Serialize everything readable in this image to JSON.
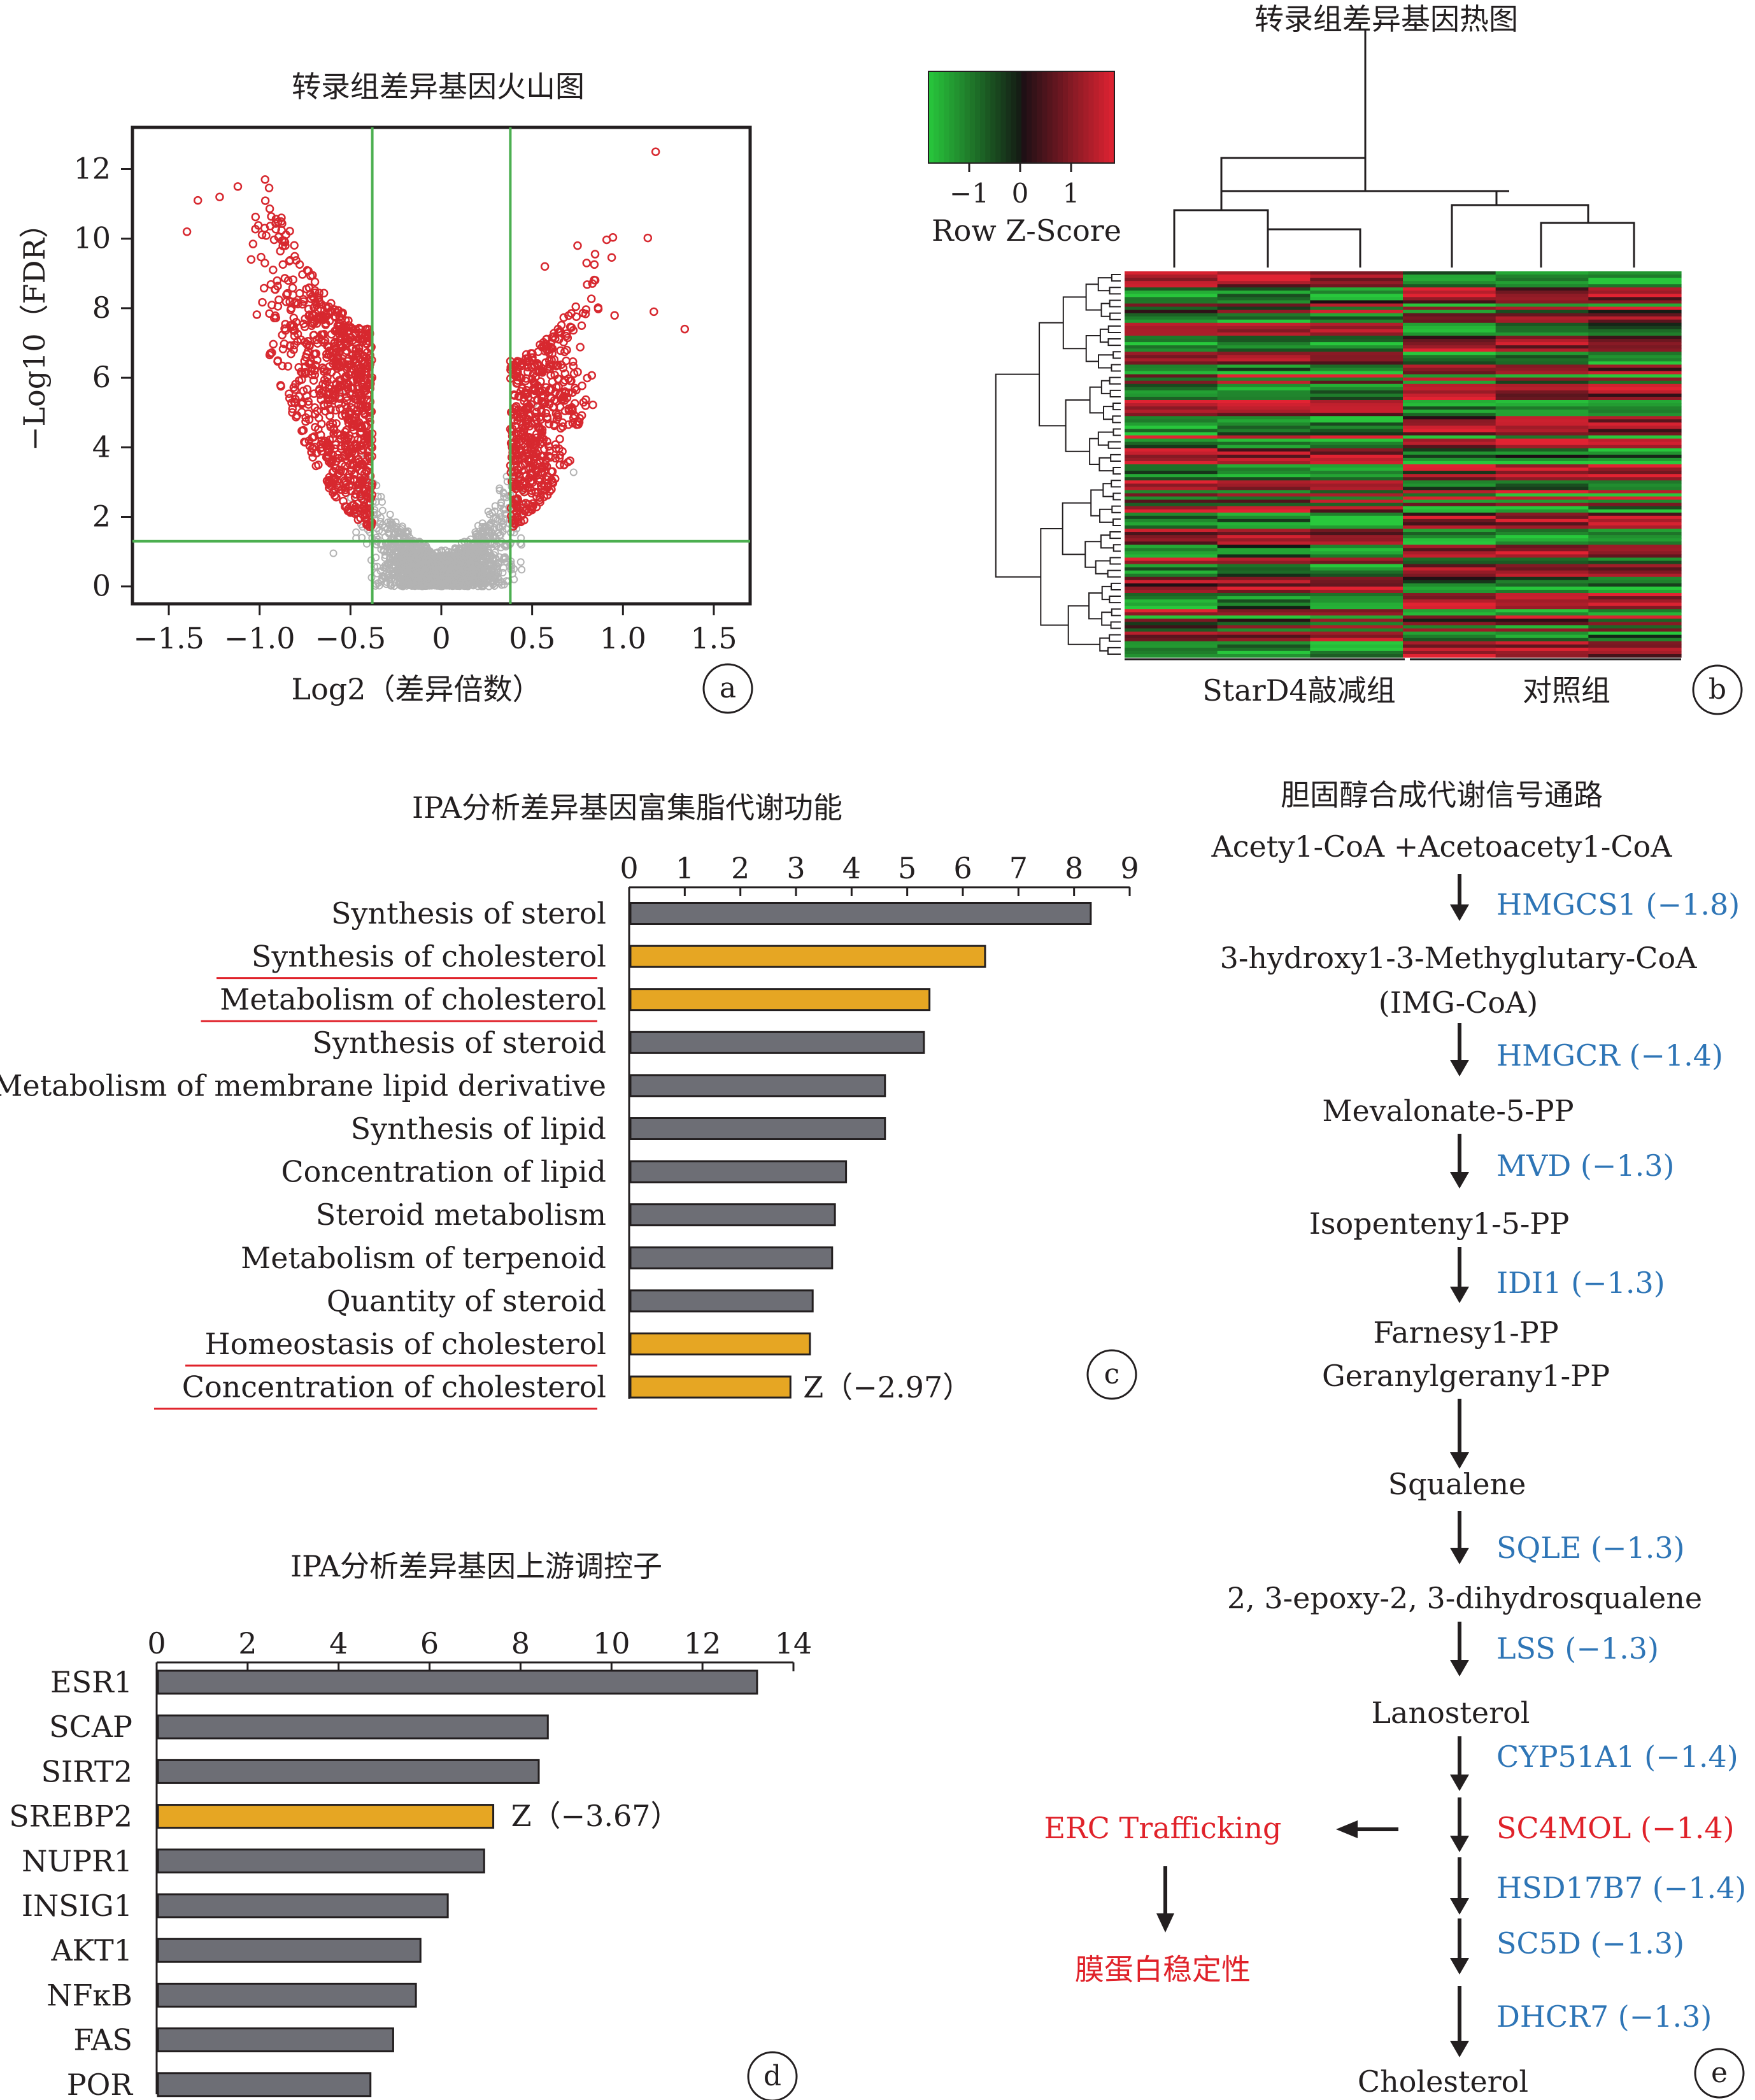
{
  "panel_a": {
    "title": "转录组差异基因火山图",
    "xlabel": "Log2（差异倍数）",
    "ylabel": "−Log10（FDR）",
    "xticks": [
      "−1.5",
      "−1.0",
      "−0.5",
      "0",
      "0.5",
      "1.0",
      "1.5"
    ],
    "yticks": [
      "0",
      "2",
      "4",
      "6",
      "8",
      "10",
      "12"
    ],
    "badge": "a",
    "colors": {
      "significant": "#d7282f",
      "nonsignificant": "#b3b3b3",
      "threshold": "#4caf50"
    }
  },
  "panel_b": {
    "title": "转录组差异基因热图",
    "legend_title": "Row Z-Score",
    "legend_ticks": [
      "−1",
      "0",
      "1"
    ],
    "group_1": "StarD4敲减组",
    "group_2": "对照组",
    "badge": "b"
  },
  "panel_c": {
    "title": "IPA分析差异基因富集脂代谢功能",
    "z_note": "Z（−2.97）",
    "badge": "c"
  },
  "panel_d": {
    "title": "IPA分析差异基因上游调控子",
    "z_note": "Z（−3.67）",
    "badge": "d"
  },
  "panel_e": {
    "title": "胆固醇合成代谢信号通路",
    "badge": "e",
    "steps": [
      {
        "metabolite": "Acety1-CoA +Acetoacety1-CoA",
        "enzymes": [
          "HMGCS1 (−1.8)"
        ]
      },
      {
        "metabolite": "3-hydroxy1-3-Methyglutary-CoA",
        "metabolite2": "(IMG-CoA)",
        "enzymes": [
          "HMGCR (−1.4)"
        ]
      },
      {
        "metabolite": "Mevalonate-5-PP",
        "enzymes": [
          "MVD (−1.3)"
        ]
      },
      {
        "metabolite": "Isopenteny1-5-PP",
        "enzymes": [
          "IDI1 (−1.3)"
        ]
      },
      {
        "metabolite": "Farnesy1-PP",
        "metabolite2": "Geranylgerany1-PP",
        "enzymes": []
      },
      {
        "metabolite": "Squalene",
        "enzymes": [
          "SQLE (−1.3)"
        ]
      },
      {
        "metabolite": "2, 3-epoxy-2, 3-dihydrosqualene",
        "enzymes": [
          "LSS (−1.3)"
        ]
      },
      {
        "metabolite": "Lanosterol",
        "enzymes": [
          "CYP51A1 (−1.4)",
          "SC4MOL (−1.4)",
          "HSD17B7 (−1.4)",
          "SC5D (−1.3)",
          "DHCR7 (−1.3)"
        ]
      },
      {
        "metabolite": "Cholesterol",
        "enzymes": []
      }
    ],
    "side_branch_1": "ERC Trafficking",
    "side_branch_2": "膜蛋白稳定性"
  },
  "chart_data": [
    {
      "panel": "a",
      "type": "scatter",
      "title": "转录组差异基因火山图",
      "xlabel": "Log2（差异倍数）",
      "ylabel": "−Log10（FDR）",
      "xlim": [
        -1.7,
        1.7
      ],
      "ylim": [
        -0.5,
        13.2
      ],
      "thresholds": {
        "log2fc": [
          -0.38,
          0.38
        ],
        "neg_log10_fdr": 1.3
      },
      "notable_points": [
        {
          "x": 1.18,
          "y": 12.5
        },
        {
          "x": 1.34,
          "y": 7.4
        },
        {
          "x": 1.17,
          "y": 7.9
        },
        {
          "x": -1.34,
          "y": 11.1
        },
        {
          "x": -1.12,
          "y": 11.5
        },
        {
          "x": -1.22,
          "y": 11.2
        },
        {
          "x": -0.97,
          "y": 11.7
        },
        {
          "x": -1.4,
          "y": 10.2
        },
        {
          "x": -0.88,
          "y": 10.6
        },
        {
          "x": 0.75,
          "y": 9.8
        },
        {
          "x": 0.8,
          "y": 9.3
        },
        {
          "x": 0.57,
          "y": 9.2
        }
      ]
    },
    {
      "panel": "b",
      "type": "heatmap",
      "title": "转录组差异基因热图",
      "legend": "Row Z-Score",
      "color_range": [
        -1.8,
        1.8
      ],
      "columns": 6,
      "column_groups": [
        "StarD4敲减组",
        "对照组"
      ]
    },
    {
      "panel": "c",
      "type": "bar",
      "orientation": "horizontal",
      "title": "IPA分析差异基因富集脂代谢功能",
      "xlim": [
        0,
        9
      ],
      "xticks": [
        0,
        1,
        2,
        3,
        4,
        5,
        6,
        7,
        8,
        9
      ],
      "categories": [
        "Synthesis of sterol",
        "Synthesis of cholesterol",
        "Metabolism of cholesterol",
        "Synthesis of steroid",
        "Metabolism of membrane lipid derivative",
        "Synthesis of lipid",
        "Concentration of lipid",
        "Steroid metabolism",
        "Metabolism of terpenoid",
        "Quantity of steroid",
        "Homeostasis of cholesterol",
        "Concentration of cholesterol"
      ],
      "values": [
        8.3,
        6.4,
        5.4,
        5.3,
        4.6,
        4.6,
        3.9,
        3.7,
        3.65,
        3.3,
        3.25,
        2.9
      ],
      "highlighted": [
        false,
        true,
        true,
        false,
        false,
        false,
        false,
        false,
        false,
        false,
        true,
        true
      ],
      "underlined": [
        false,
        true,
        true,
        false,
        false,
        false,
        false,
        false,
        false,
        false,
        true,
        true
      ],
      "colors": {
        "default": "#6d6e75",
        "highlight": "#e6a623",
        "underline": "#e0222a"
      }
    },
    {
      "panel": "d",
      "type": "bar",
      "orientation": "horizontal",
      "title": "IPA分析差异基因上游调控子",
      "xlim": [
        0,
        14
      ],
      "xticks": [
        0,
        2,
        4,
        6,
        8,
        10,
        12,
        14
      ],
      "categories": [
        "ESR1",
        "SCAP",
        "SIRT2",
        "SREBP2",
        "NUPR1",
        "INSIG1",
        "AKT1",
        "NFκB",
        "FAS",
        "POR"
      ],
      "values": [
        13.2,
        8.6,
        8.4,
        7.4,
        7.2,
        6.4,
        5.8,
        5.7,
        5.2,
        4.7
      ],
      "highlighted": [
        false,
        false,
        false,
        true,
        false,
        false,
        false,
        false,
        false,
        false
      ],
      "colors": {
        "default": "#6d6e75",
        "highlight": "#e6a623",
        "label_highlight": "#e0222a"
      }
    }
  ]
}
